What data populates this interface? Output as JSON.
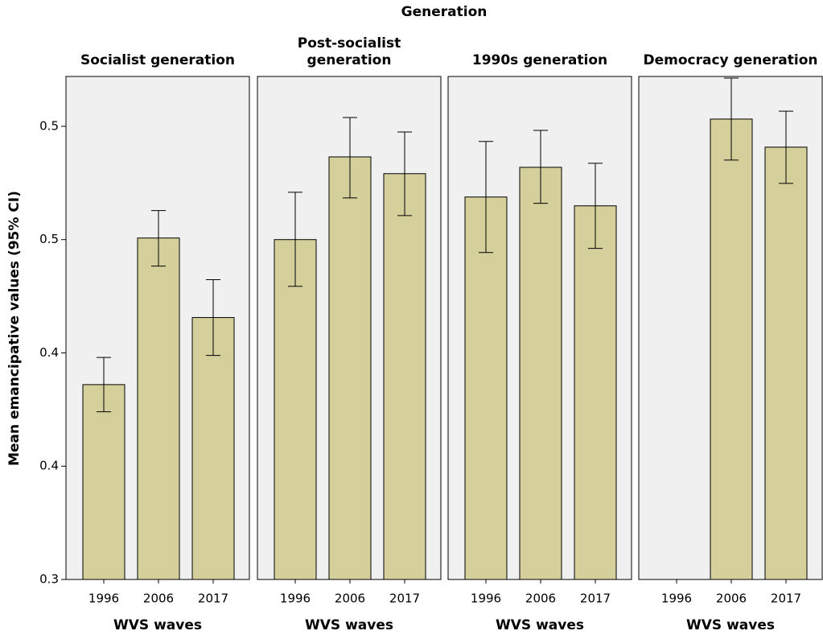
{
  "title": "Generation",
  "ylabel": "Mean emancipative values (95% CI)",
  "ylim": [
    0.3,
    0.522
  ],
  "yticks": [
    0.3,
    {
      "value": 0.35,
      "label": "0.4"
    },
    0.4,
    {
      "value": 0.45,
      "label": "0.5"
    },
    0.5
  ],
  "bar_color": "#d4cf9b",
  "panel_color": "#f0f0f0",
  "chart_data": [
    {
      "type": "bar",
      "title": "Socialist generation",
      "xlabel": "WVS waves",
      "categories": [
        "1996",
        "2006",
        "2017"
      ],
      "values": [
        0.386,
        0.4507,
        0.4156
      ],
      "ci_low": [
        0.374,
        0.4383,
        0.3989
      ],
      "ci_high": [
        0.398,
        0.4628,
        0.4323
      ]
    },
    {
      "type": "bar",
      "title": "Post-socialist generation",
      "xlabel": "WVS waves",
      "categories": [
        "1996",
        "2006",
        "2017"
      ],
      "values": [
        0.45,
        0.4865,
        0.4791
      ],
      "ci_low": [
        0.4294,
        0.4684,
        0.4606
      ],
      "ci_high": [
        0.4709,
        0.5039,
        0.4975
      ]
    },
    {
      "type": "bar",
      "title": "1990s generation",
      "xlabel": "WVS waves",
      "categories": [
        "1996",
        "2006",
        "2017"
      ],
      "values": [
        0.4688,
        0.4819,
        0.4649
      ],
      "ci_low": [
        0.4443,
        0.466,
        0.4461
      ],
      "ci_high": [
        0.4933,
        0.4982,
        0.4837
      ]
    },
    {
      "type": "bar",
      "title": "Democracy generation",
      "xlabel": "WVS waves",
      "categories": [
        "1996",
        "2006",
        "2017"
      ],
      "values": [
        null,
        0.5032,
        0.4908
      ],
      "ci_low": [
        null,
        0.4851,
        0.4748
      ],
      "ci_high": [
        null,
        0.5213,
        0.5067
      ]
    }
  ]
}
